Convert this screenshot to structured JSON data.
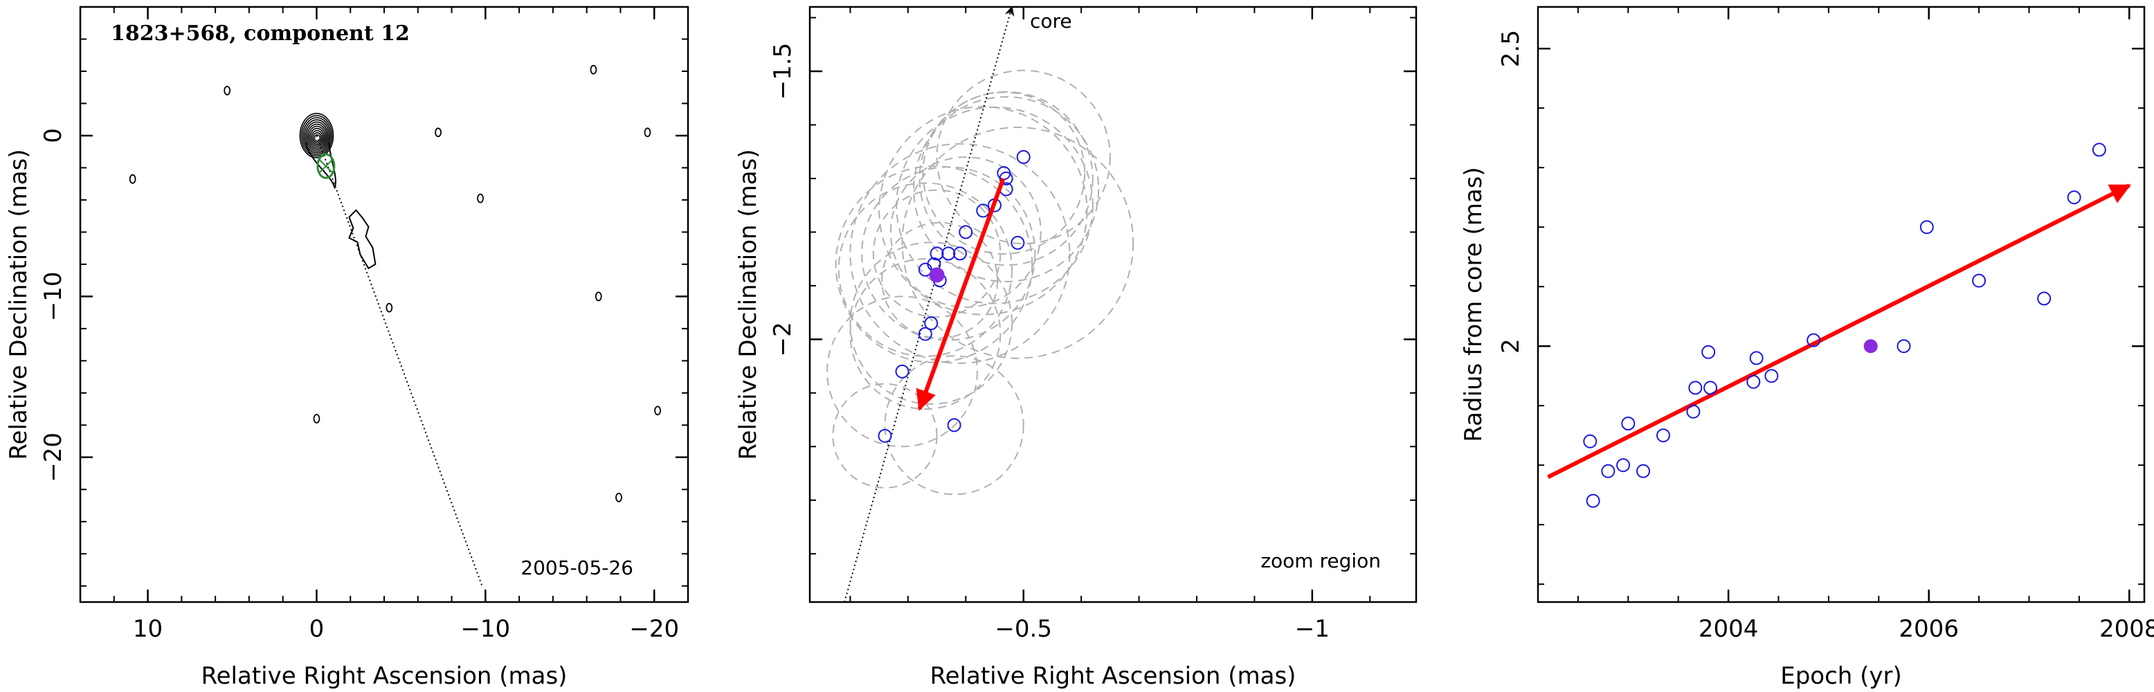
{
  "chart_data": [
    {
      "type": "contour",
      "title": "1823+568, component 12",
      "date": "2005-05-26",
      "xlabel": "Relative Right Ascension (mas)",
      "ylabel": "Relative Declination (mas)",
      "xlim": [
        14,
        -22
      ],
      "ylim": [
        -29,
        8
      ],
      "xticks": [
        10,
        0,
        -10,
        -20
      ],
      "yticks": [
        0,
        -10,
        -20
      ],
      "core_contours": {
        "center": [
          0,
          0
        ],
        "levels": 11
      },
      "component": {
        "x": -0.55,
        "y": -1.9,
        "color": "#2e8b3a"
      },
      "jet_direction_line": [
        [
          0,
          0
        ],
        [
          -9.8,
          -28
        ]
      ],
      "isolated_contours": [
        [
          5.3,
          2.8
        ],
        [
          10.9,
          -2.7
        ],
        [
          -7.2,
          0.2
        ],
        [
          -9.7,
          -3.9
        ],
        [
          -16.4,
          4.1
        ],
        [
          -19.6,
          0.2
        ],
        [
          -4.3,
          -10.7
        ],
        [
          -16.7,
          -10.0
        ],
        [
          0.0,
          -17.6
        ],
        [
          -20.2,
          -17.1
        ],
        [
          -17.9,
          -22.5
        ]
      ]
    },
    {
      "type": "scatter",
      "annotation_top": "core",
      "annotation_bottom": "zoom region",
      "xlabel": "Relative Right Ascension (mas)",
      "ylabel": "Relative Declination (mas)",
      "xlim": [
        -0.13,
        -1.18
      ],
      "ylim": [
        -2.49,
        -1.38
      ],
      "xticks": [
        -0.5,
        -1
      ],
      "yticks": [
        -1.5,
        -2
      ],
      "points_open": [
        [
          -0.5,
          -1.66
        ],
        [
          -0.49,
          -1.82
        ],
        [
          -0.47,
          -1.7
        ],
        [
          -0.47,
          -1.72
        ],
        [
          -0.466,
          -1.69
        ],
        [
          -0.45,
          -1.75
        ],
        [
          -0.43,
          -1.76
        ],
        [
          -0.4,
          -1.8
        ],
        [
          -0.39,
          -1.84
        ],
        [
          -0.37,
          -1.84
        ],
        [
          -0.35,
          -1.84
        ],
        [
          -0.345,
          -1.86
        ],
        [
          -0.33,
          -1.87
        ],
        [
          -0.355,
          -1.89
        ],
        [
          -0.34,
          -1.97
        ],
        [
          -0.33,
          -1.99
        ],
        [
          -0.29,
          -2.06
        ],
        [
          -0.38,
          -2.16
        ],
        [
          -0.26,
          -2.18
        ]
      ],
      "point_filled": [
        -0.35,
        -1.88
      ],
      "point_color": "#1a1adf",
      "filled_color": "#8a2be2",
      "error_circles": [
        {
          "center": [
            -0.5,
            -1.66
          ],
          "r": 0.15
        },
        {
          "center": [
            -0.49,
            -1.82
          ],
          "r": 0.2
        },
        {
          "center": [
            -0.47,
            -1.7
          ],
          "r": 0.15
        },
        {
          "center": [
            -0.47,
            -1.72
          ],
          "r": 0.16
        },
        {
          "center": [
            -0.466,
            -1.69
          ],
          "r": 0.14
        },
        {
          "center": [
            -0.45,
            -1.75
          ],
          "r": 0.17
        },
        {
          "center": [
            -0.43,
            -1.76
          ],
          "r": 0.18
        },
        {
          "center": [
            -0.4,
            -1.8
          ],
          "r": 0.13
        },
        {
          "center": [
            -0.39,
            -1.84
          ],
          "r": 0.19
        },
        {
          "center": [
            -0.37,
            -1.84
          ],
          "r": 0.15
        },
        {
          "center": [
            -0.35,
            -1.84
          ],
          "r": 0.11
        },
        {
          "center": [
            -0.345,
            -1.86
          ],
          "r": 0.17
        },
        {
          "center": [
            -0.33,
            -1.87
          ],
          "r": 0.15
        },
        {
          "center": [
            -0.355,
            -1.89
          ],
          "r": 0.1
        },
        {
          "center": [
            -0.34,
            -1.97
          ],
          "r": 0.14
        },
        {
          "center": [
            -0.33,
            -1.99
          ],
          "r": 0.13
        },
        {
          "center": [
            -0.29,
            -2.06
          ],
          "r": 0.13
        },
        {
          "center": [
            -0.38,
            -2.16
          ],
          "r": 0.12
        },
        {
          "center": [
            -0.26,
            -2.18
          ],
          "r": 0.09
        }
      ],
      "motion_arrow": {
        "from": [
          -0.465,
          -1.7
        ],
        "to": [
          -0.32,
          -2.13
        ],
        "color": "#ff0000"
      },
      "core_line": {
        "from": [
          -0.19,
          -2.49
        ],
        "to": [
          -0.48,
          -1.38
        ]
      }
    },
    {
      "type": "scatter",
      "xlabel": "Epoch (yr)",
      "ylabel": "Radius from core (mas)",
      "xlim": [
        2002.1,
        2008.15
      ],
      "ylim": [
        1.57,
        2.57
      ],
      "xticks": [
        2004,
        2006,
        2008
      ],
      "yticks": [
        2,
        2.5
      ],
      "points_open": [
        [
          2002.62,
          1.84
        ],
        [
          2002.65,
          1.74
        ],
        [
          2002.8,
          1.79
        ],
        [
          2002.95,
          1.8
        ],
        [
          2003.0,
          1.87
        ],
        [
          2003.15,
          1.79
        ],
        [
          2003.35,
          1.85
        ],
        [
          2003.65,
          1.89
        ],
        [
          2003.67,
          1.93
        ],
        [
          2003.8,
          1.99
        ],
        [
          2003.82,
          1.93
        ],
        [
          2004.25,
          1.94
        ],
        [
          2004.28,
          1.98
        ],
        [
          2004.43,
          1.95
        ],
        [
          2004.85,
          2.01
        ],
        [
          2005.75,
          2.0
        ],
        [
          2005.98,
          2.2
        ],
        [
          2006.5,
          2.11
        ],
        [
          2007.15,
          2.08
        ],
        [
          2007.45,
          2.25
        ],
        [
          2007.7,
          2.33
        ]
      ],
      "point_filled": [
        2005.42,
        2.0
      ],
      "point_color": "#1a1adf",
      "filled_color": "#8a2be2",
      "fit_arrow": {
        "from": [
          2002.2,
          1.78
        ],
        "to": [
          2008.0,
          2.27
        ],
        "color": "#ff0000"
      }
    }
  ]
}
